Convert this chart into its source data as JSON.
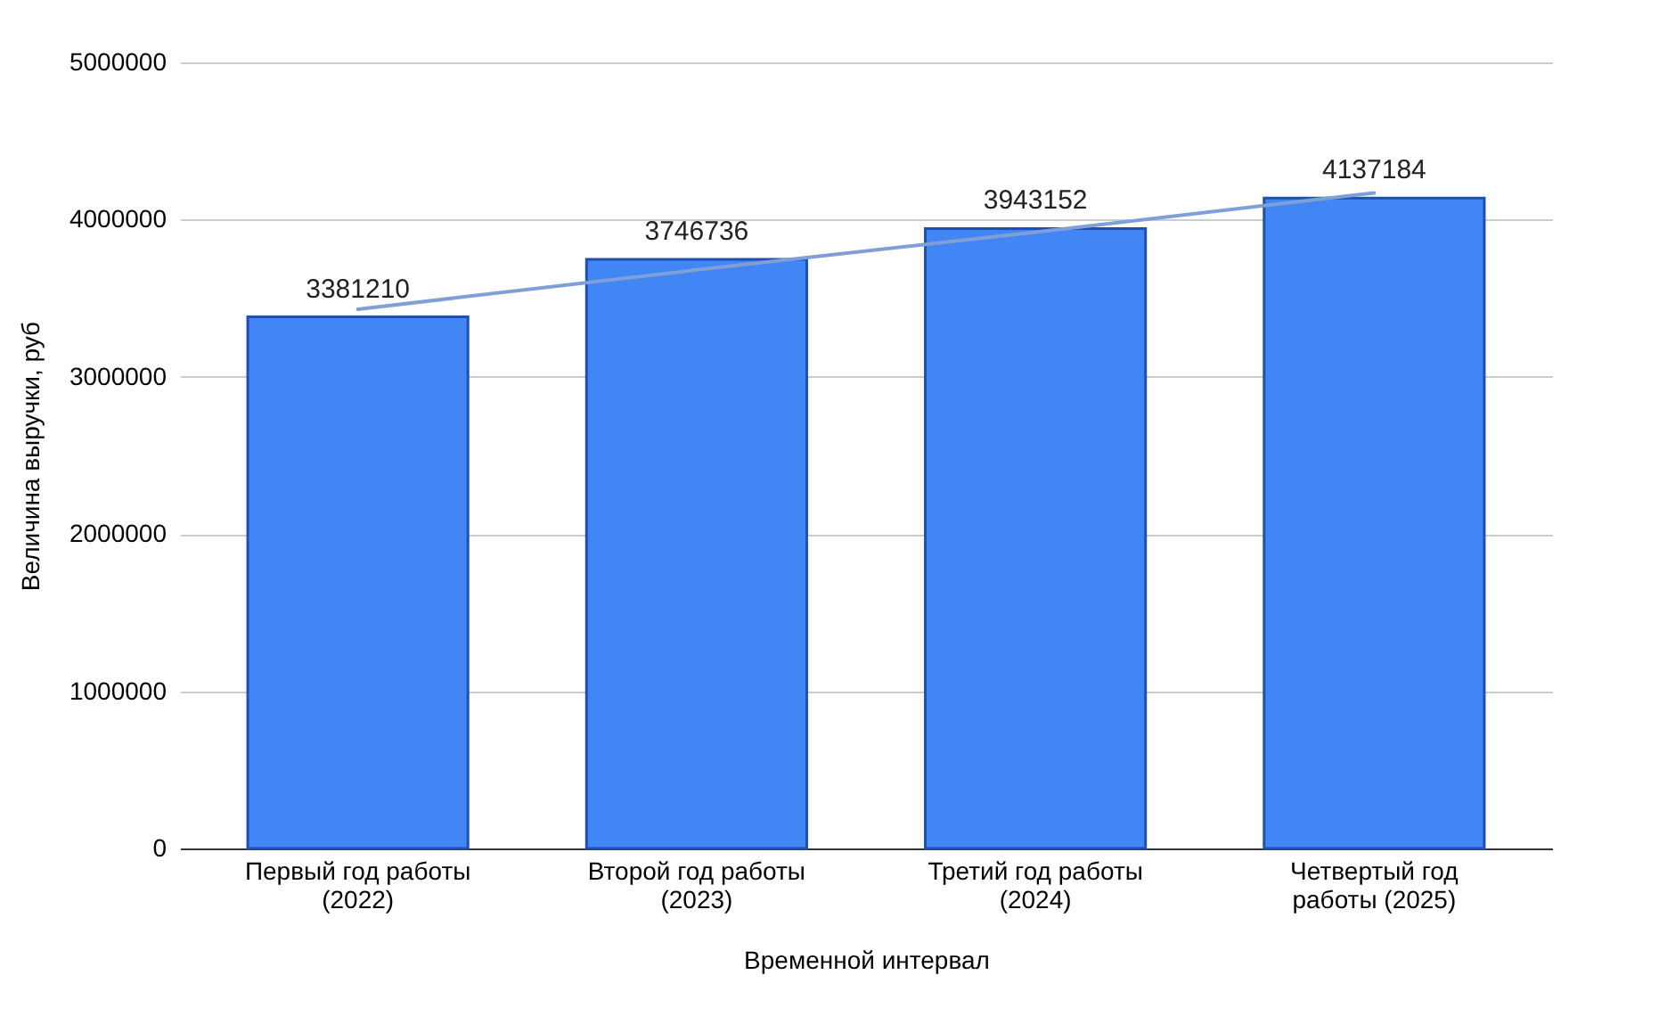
{
  "chart_data": {
    "type": "bar",
    "xlabel": "Временной интервал",
    "ylabel": "Величина выручки, руб",
    "categories": [
      "Первый год работы (2022)",
      "Второй год работы (2023)",
      "Третий год работы (2024)",
      "Четвертый год работы (2025)"
    ],
    "series": [
      {
        "color": "#4285f4",
        "values": [
          3381210,
          3746736,
          3943152,
          4137184
        ],
        "value_labels": [
          "3381210",
          "3746736",
          "3943152",
          "4137184"
        ]
      },
      {
        "type": "line",
        "color": "#7f9fd8",
        "x": [
          "Первый год работы (2022)",
          "Второй год работы (2023)",
          "Третий год работы (2024)",
          "Четвертый год работы (2025)"
        ],
        "values": [
          3430000,
          3680000,
          3920000,
          4170000
        ]
      }
    ],
    "ylim": [
      0,
      5000000
    ],
    "yticks": [
      0,
      1000000,
      2000000,
      3000000,
      4000000,
      5000000
    ],
    "grid": "y"
  }
}
